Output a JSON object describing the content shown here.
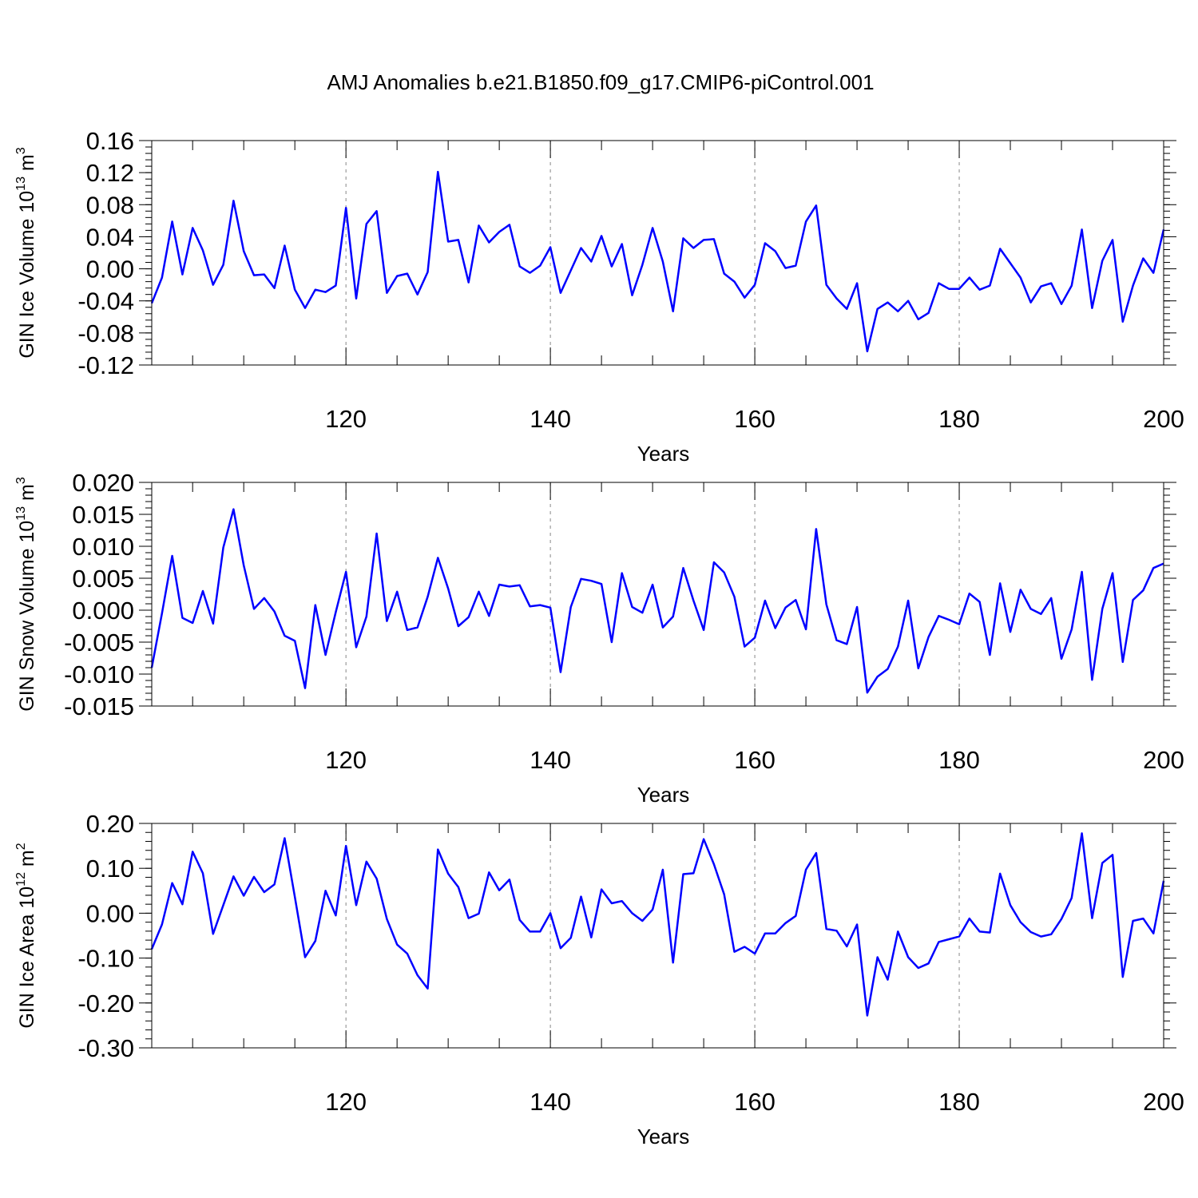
{
  "chart_data": [
    {
      "type": "line",
      "title": "AMJ Anomalies b.e21.B1850.f09_g17.CMIP6-piControl.001",
      "xlabel": "Years",
      "ylabel": {
        "base": "GIN Ice Volume 10",
        "exp": "13",
        "unit": " m",
        "unit_exp": "3"
      },
      "xlim": [
        101,
        200
      ],
      "ylim": [
        -0.12,
        0.16
      ],
      "xticks": [
        120,
        140,
        160,
        180,
        200
      ],
      "xtick_labels": [
        "120",
        "140",
        "160",
        "180",
        "200"
      ],
      "yticks": [
        -0.12,
        -0.08,
        -0.04,
        0.0,
        0.04,
        0.08,
        0.12,
        0.16
      ],
      "ytick_labels": [
        "-0.12",
        "-0.08",
        "-0.04",
        "0.00",
        "0.04",
        "0.08",
        "0.12",
        "0.16"
      ],
      "y_minor_step": 0.008,
      "grid": "vertical dashed at major x ticks",
      "series": [
        {
          "color": "#0000ff",
          "x_start": 101,
          "values": [
            -0.043,
            -0.011,
            0.059,
            -0.007,
            0.051,
            0.023,
            -0.02,
            0.005,
            0.085,
            0.022,
            -0.008,
            -0.007,
            -0.024,
            0.029,
            -0.026,
            -0.049,
            -0.026,
            -0.029,
            -0.021,
            0.076,
            -0.037,
            0.056,
            0.072,
            -0.03,
            -0.009,
            -0.006,
            -0.032,
            -0.004,
            0.121,
            0.034,
            0.036,
            -0.017,
            0.054,
            0.033,
            0.046,
            0.055,
            0.003,
            -0.005,
            0.004,
            0.027,
            -0.03,
            -0.002,
            0.026,
            0.009,
            0.041,
            0.003,
            0.031,
            -0.033,
            0.005,
            0.051,
            0.009,
            -0.053,
            0.038,
            0.026,
            0.036,
            0.037,
            -0.006,
            -0.016,
            -0.036,
            -0.02,
            0.032,
            0.022,
            0.001,
            0.004,
            0.059,
            0.079,
            -0.02,
            -0.037,
            -0.05,
            -0.018,
            -0.103,
            -0.05,
            -0.042,
            -0.053,
            -0.04,
            -0.063,
            -0.055,
            -0.018,
            -0.025,
            -0.025,
            -0.011,
            -0.026,
            -0.021,
            0.025,
            0.007,
            -0.011,
            -0.042,
            -0.022,
            -0.018,
            -0.044,
            -0.021,
            0.049,
            -0.049,
            0.01,
            0.036,
            -0.066,
            -0.021,
            0.013,
            -0.005,
            0.049
          ]
        }
      ]
    },
    {
      "type": "line",
      "xlabel": "Years",
      "ylabel": {
        "base": "GIN Snow Volume 10",
        "exp": "13",
        "unit": " m",
        "unit_exp": "3"
      },
      "xlim": [
        101,
        200
      ],
      "ylim": [
        -0.015,
        0.02
      ],
      "xticks": [
        120,
        140,
        160,
        180,
        200
      ],
      "xtick_labels": [
        "120",
        "140",
        "160",
        "180",
        "200"
      ],
      "yticks": [
        -0.015,
        -0.01,
        -0.005,
        0.0,
        0.005,
        0.01,
        0.015,
        0.02
      ],
      "ytick_labels": [
        "-0.015",
        "-0.010",
        "-0.005",
        "0.000",
        "0.005",
        "0.010",
        "0.015",
        "0.020"
      ],
      "y_minor_step": 0.001,
      "grid": "vertical dashed at major x ticks",
      "series": [
        {
          "color": "#0000ff",
          "x_start": 101,
          "values": [
            -0.009,
            -0.0005,
            0.0085,
            -0.0012,
            -0.002,
            0.003,
            -0.0021,
            0.0098,
            0.0158,
            0.007,
            0.0002,
            0.0019,
            -0.0002,
            -0.004,
            -0.0048,
            -0.0122,
            0.0008,
            -0.007,
            -0.0003,
            0.006,
            -0.0058,
            -0.001,
            0.012,
            -0.0017,
            0.0029,
            -0.0031,
            -0.0027,
            0.0021,
            0.0082,
            0.0034,
            -0.0025,
            -0.0011,
            0.0029,
            -0.0009,
            0.004,
            0.0037,
            0.0039,
            0.0006,
            0.0008,
            0.0004,
            -0.0097,
            0.0005,
            0.0049,
            0.0046,
            0.0041,
            -0.005,
            0.0058,
            0.0005,
            -0.0004,
            0.004,
            -0.0027,
            -0.001,
            0.0066,
            0.0015,
            -0.0031,
            0.0075,
            0.0059,
            0.0021,
            -0.0057,
            -0.0043,
            0.0015,
            -0.0028,
            0.0004,
            0.0016,
            -0.003,
            0.0127,
            0.0009,
            -0.0047,
            -0.0053,
            0.0005,
            -0.0129,
            -0.0104,
            -0.0092,
            -0.0057,
            0.0015,
            -0.0091,
            -0.0042,
            -0.0009,
            -0.0015,
            -0.0022,
            0.0026,
            0.0013,
            -0.007,
            0.0042,
            -0.0034,
            0.0032,
            0.0002,
            -0.0006,
            0.0019,
            -0.0076,
            -0.003,
            0.006,
            -0.0109,
            0.0002,
            0.0058,
            -0.0081,
            0.0016,
            0.0031,
            0.0066,
            0.0073
          ]
        }
      ]
    },
    {
      "type": "line",
      "xlabel": "Years",
      "ylabel": {
        "base": "GIN Ice Area 10",
        "exp": "12",
        "unit": " m",
        "unit_exp": "2"
      },
      "xlim": [
        101,
        200
      ],
      "ylim": [
        -0.3,
        0.2
      ],
      "xticks": [
        120,
        140,
        160,
        180,
        200
      ],
      "xtick_labels": [
        "120",
        "140",
        "160",
        "180",
        "200"
      ],
      "yticks": [
        -0.3,
        -0.2,
        -0.1,
        0.0,
        0.1,
        0.2
      ],
      "ytick_labels": [
        "-0.30",
        "-0.20",
        "-0.10",
        "0.00",
        "0.10",
        "0.20"
      ],
      "y_minor_step": 0.02,
      "grid": "vertical dashed at major x ticks",
      "series": [
        {
          "color": "#0000ff",
          "x_start": 101,
          "values": [
            -0.08,
            -0.025,
            0.067,
            0.02,
            0.137,
            0.089,
            -0.046,
            0.018,
            0.082,
            0.039,
            0.081,
            0.047,
            0.064,
            0.167,
            0.036,
            -0.098,
            -0.062,
            0.05,
            -0.005,
            0.15,
            0.018,
            0.115,
            0.077,
            -0.013,
            -0.07,
            -0.09,
            -0.138,
            -0.168,
            0.142,
            0.088,
            0.058,
            -0.011,
            -0.001,
            0.091,
            0.051,
            0.075,
            -0.015,
            -0.041,
            -0.041,
            0.0,
            -0.078,
            -0.055,
            0.037,
            -0.054,
            0.053,
            0.022,
            0.027,
            0.0,
            -0.017,
            0.008,
            0.097,
            -0.11,
            0.087,
            0.089,
            0.165,
            0.109,
            0.042,
            -0.086,
            -0.075,
            -0.09,
            -0.045,
            -0.045,
            -0.022,
            -0.006,
            0.097,
            0.134,
            -0.035,
            -0.039,
            -0.074,
            -0.025,
            -0.228,
            -0.098,
            -0.148,
            -0.041,
            -0.098,
            -0.122,
            -0.112,
            -0.064,
            -0.058,
            -0.052,
            -0.012,
            -0.041,
            -0.043,
            0.088,
            0.018,
            -0.02,
            -0.042,
            -0.052,
            -0.047,
            -0.013,
            0.034,
            0.178,
            -0.011,
            0.112,
            0.13,
            -0.142,
            -0.017,
            -0.012,
            -0.045,
            0.072
          ]
        }
      ]
    }
  ]
}
